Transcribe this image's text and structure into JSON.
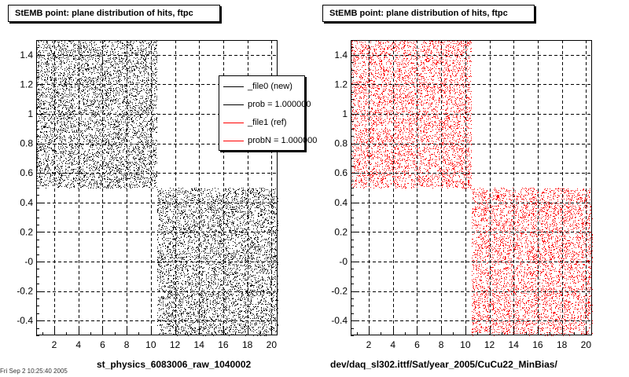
{
  "footnote": "Fri Sep 2 10:25:40 2005",
  "chart_data": [
    {
      "type": "scatter",
      "title": "StEMB point: plane distribution of hits, ftpc",
      "xlabel": "st_physics_6083006_raw_1040002",
      "ylabel": "",
      "xlim": [
        0.5,
        20.5
      ],
      "ylim": [
        -0.5,
        1.5
      ],
      "x_ticks": [
        2,
        4,
        6,
        8,
        10,
        12,
        14,
        16,
        18,
        20
      ],
      "y_ticks": [
        "-0.4",
        "-0.2",
        "-0",
        "0.2",
        "0.4",
        "0.6",
        "0.8",
        "1",
        "1.2",
        "1.4"
      ],
      "grid": true,
      "marker_color": "#000000",
      "regions": [
        {
          "x": [
            0.5,
            10.5
          ],
          "y": [
            0.5,
            1.5
          ]
        },
        {
          "x": [
            10.5,
            20.5
          ],
          "y": [
            -0.5,
            0.5
          ]
        }
      ],
      "legend": {
        "placement": "top-right",
        "entries": [
          {
            "label": "_file0 (new)",
            "color": "#000000"
          },
          {
            "label": "prob = 1.000000",
            "color": "#000000"
          },
          {
            "label": "_file1 (ref)",
            "color": "#ff0000"
          },
          {
            "label": "probN = 1.000000",
            "color": "#ff0000"
          }
        ]
      }
    },
    {
      "type": "scatter",
      "title": "StEMB point: plane distribution of hits, ftpc",
      "xlabel": "dev/daq_sl302.ittf/Sat/year_2005/CuCu22_MinBias/",
      "ylabel": "",
      "xlim": [
        0.5,
        20.5
      ],
      "ylim": [
        -0.5,
        1.5
      ],
      "x_ticks": [
        2,
        4,
        6,
        8,
        10,
        12,
        14,
        16,
        18,
        20
      ],
      "y_ticks": [
        "-0.4",
        "-0.2",
        "-0",
        "0.2",
        "0.4",
        "0.6",
        "0.8",
        "1",
        "1.2",
        "1.4"
      ],
      "grid": true,
      "marker_color": "#ff0000",
      "regions": [
        {
          "x": [
            0.5,
            10.5
          ],
          "y": [
            0.5,
            1.5
          ]
        },
        {
          "x": [
            10.5,
            20.5
          ],
          "y": [
            -0.5,
            0.5
          ]
        }
      ]
    }
  ]
}
